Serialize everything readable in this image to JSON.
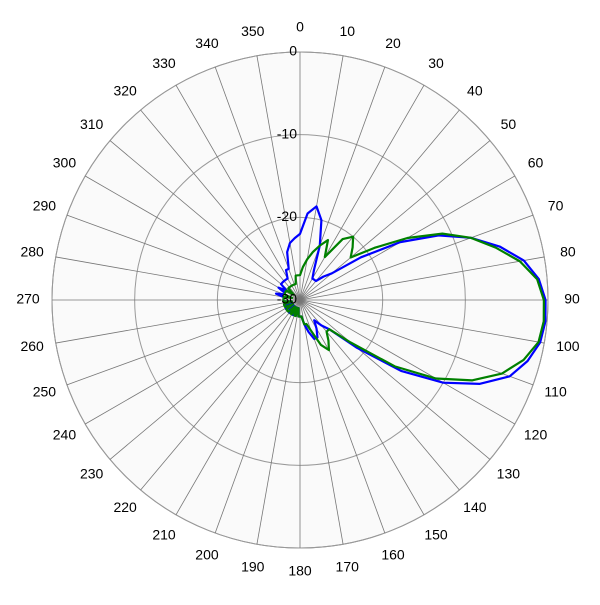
{
  "chart_data": {
    "type": "polar",
    "x": [
      0,
      5,
      10,
      15,
      20,
      25,
      30,
      35,
      40,
      45,
      50,
      55,
      60,
      65,
      70,
      75,
      80,
      85,
      90,
      95,
      100,
      105,
      110,
      115,
      120,
      125,
      130,
      135,
      140,
      145,
      150,
      155,
      160,
      165,
      170,
      175,
      180,
      185,
      190,
      195,
      200,
      205,
      210,
      215,
      220,
      225,
      230,
      235,
      240,
      245,
      250,
      255,
      260,
      265,
      270,
      275,
      280,
      285,
      290,
      295,
      300,
      305,
      310,
      315,
      320,
      325,
      330,
      335,
      340,
      345,
      350,
      355
    ],
    "xticks": [
      0,
      10,
      20,
      30,
      40,
      50,
      60,
      70,
      80,
      90,
      100,
      110,
      120,
      130,
      140,
      150,
      160,
      170,
      180,
      190,
      200,
      210,
      220,
      230,
      240,
      250,
      260,
      270,
      280,
      290,
      300,
      310,
      320,
      330,
      340,
      350
    ],
    "ylim": [
      -30,
      0
    ],
    "yticks": [
      -30,
      -20,
      -10,
      0
    ],
    "grid": true,
    "series": [
      {
        "color": "#0000ff",
        "values": [
          -22,
          -19.5,
          -18.5,
          -20,
          -23,
          -26,
          -27,
          -27,
          -27,
          -26,
          -25,
          -21,
          -16,
          -11.5,
          -8,
          -5,
          -2.5,
          -1,
          -0.3,
          -0.2,
          -0.5,
          -1.5,
          -3,
          -6,
          -10,
          -15,
          -21,
          -25,
          -26,
          -27,
          -26,
          -25,
          -25,
          -26,
          -27,
          -28,
          -28,
          -28,
          -29,
          -28,
          -29,
          -28,
          -28,
          -29,
          -28,
          -28,
          -29,
          -28,
          -28,
          -29,
          -28,
          -28,
          -29,
          -28,
          -28,
          -28,
          -28,
          -27,
          -28,
          -28,
          -27,
          -28,
          -27,
          -27,
          -27,
          -27,
          -27,
          -26,
          -26,
          -24,
          -23,
          -22.5
        ]
      },
      {
        "color": "#008000",
        "values": [
          -27,
          -26,
          -25,
          -24,
          -23,
          -22,
          -24,
          -21,
          -20,
          -21,
          -22,
          -19,
          -15,
          -11,
          -8,
          -5.5,
          -3,
          -1.2,
          -0.5,
          -0.4,
          -0.7,
          -2,
          -4,
          -7,
          -11,
          -16,
          -22,
          -25,
          -25,
          -24,
          -23,
          -24,
          -26,
          -27,
          -27,
          -28,
          -28,
          -28,
          -29,
          -28,
          -28,
          -29,
          -28,
          -28,
          -29,
          -28,
          -28,
          -28,
          -29,
          -28,
          -28,
          -28,
          -29,
          -28,
          -28,
          -28,
          -28,
          -29,
          -28,
          -28,
          -28,
          -28,
          -29,
          -28,
          -28,
          -28,
          -28,
          -28,
          -28,
          -28,
          -27,
          -27
        ]
      }
    ]
  }
}
